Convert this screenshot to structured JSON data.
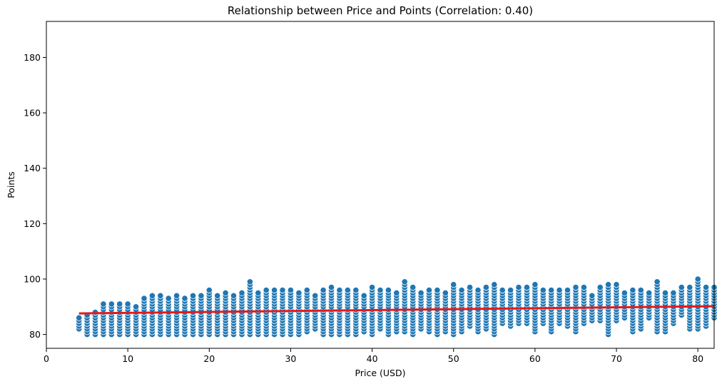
{
  "chart_data": {
    "type": "scatter",
    "title": "Relationship between Price and Points (Correlation: 0.40)",
    "xlabel": "Price (USD)",
    "ylabel": "Points",
    "xlim": [
      0,
      82
    ],
    "ylim": [
      75,
      193
    ],
    "xticks": [
      0,
      10,
      20,
      30,
      40,
      50,
      60,
      70,
      80
    ],
    "yticks": [
      80,
      100,
      120,
      140,
      160,
      180
    ],
    "grid": false,
    "colors": {
      "points": "#1f77b4",
      "trend": "#e31a1c"
    },
    "series": [
      {
        "kind": "scatter",
        "points_by_price": [
          [
            4,
            82,
            86
          ],
          [
            5,
            80,
            87
          ],
          [
            6,
            80,
            88
          ],
          [
            7,
            80,
            91
          ],
          [
            8,
            80,
            91
          ],
          [
            9,
            80,
            91
          ],
          [
            10,
            80,
            91
          ],
          [
            11,
            80,
            90
          ],
          [
            12,
            80,
            93
          ],
          [
            13,
            80,
            94
          ],
          [
            14,
            80,
            94
          ],
          [
            15,
            80,
            93
          ],
          [
            16,
            80,
            94
          ],
          [
            17,
            80,
            93
          ],
          [
            18,
            80,
            94
          ],
          [
            19,
            80,
            94
          ],
          [
            20,
            80,
            96
          ],
          [
            21,
            80,
            94
          ],
          [
            22,
            80,
            95
          ],
          [
            23,
            80,
            94
          ],
          [
            24,
            80,
            95
          ],
          [
            25,
            80,
            99
          ],
          [
            26,
            80,
            95
          ],
          [
            27,
            80,
            96
          ],
          [
            28,
            80,
            96
          ],
          [
            29,
            80,
            96
          ],
          [
            30,
            80,
            96
          ],
          [
            31,
            80,
            95
          ],
          [
            32,
            81,
            96
          ],
          [
            33,
            82,
            94
          ],
          [
            34,
            80,
            96
          ],
          [
            35,
            80,
            97
          ],
          [
            36,
            80,
            96
          ],
          [
            37,
            80,
            96
          ],
          [
            38,
            80,
            96
          ],
          [
            39,
            81,
            94
          ],
          [
            40,
            80,
            97
          ],
          [
            41,
            82,
            96
          ],
          [
            42,
            80,
            96
          ],
          [
            43,
            81,
            95
          ],
          [
            44,
            81,
            99
          ],
          [
            45,
            80,
            97
          ],
          [
            46,
            82,
            95
          ],
          [
            47,
            81,
            96
          ],
          [
            48,
            80,
            96
          ],
          [
            49,
            81,
            95
          ],
          [
            50,
            80,
            98
          ],
          [
            51,
            81,
            96
          ],
          [
            52,
            83,
            97
          ],
          [
            53,
            81,
            96
          ],
          [
            54,
            82,
            97
          ],
          [
            55,
            80,
            98
          ],
          [
            56,
            84,
            96
          ],
          [
            57,
            83,
            96
          ],
          [
            58,
            84,
            97
          ],
          [
            59,
            84,
            97
          ],
          [
            60,
            81,
            98
          ],
          [
            61,
            84,
            96
          ],
          [
            62,
            81,
            96
          ],
          [
            63,
            84,
            96
          ],
          [
            64,
            83,
            96
          ],
          [
            65,
            81,
            97
          ],
          [
            66,
            84,
            97
          ],
          [
            67,
            85,
            94
          ],
          [
            68,
            85,
            97
          ],
          [
            69,
            80,
            98
          ],
          [
            70,
            85,
            98
          ],
          [
            71,
            86,
            95
          ],
          [
            72,
            81,
            96
          ],
          [
            73,
            82,
            96
          ],
          [
            74,
            86,
            95
          ],
          [
            75,
            81,
            99
          ],
          [
            76,
            81,
            95
          ],
          [
            77,
            84,
            95
          ],
          [
            78,
            87,
            97
          ],
          [
            79,
            82,
            97
          ],
          [
            80,
            82,
            100
          ],
          [
            81,
            83,
            97
          ],
          [
            82,
            86,
            97
          ]
        ]
      },
      {
        "kind": "trend",
        "x": [
          4,
          82
        ],
        "y": [
          87.6,
          90.2
        ]
      }
    ]
  }
}
